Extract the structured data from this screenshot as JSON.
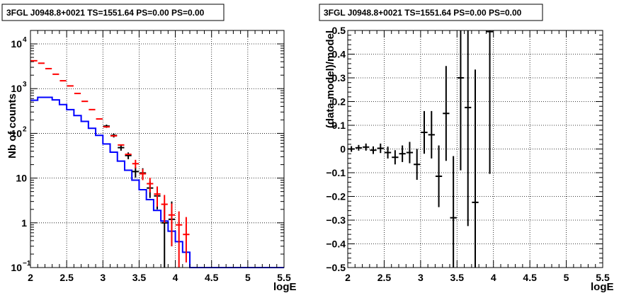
{
  "chart_data": [
    {
      "type": "step",
      "title": "3FGL J0948.8+0021 TS=1551.64 PS=0.00 PS=0.00",
      "xlabel": "logE",
      "ylabel": "Nb of counts",
      "xlim": [
        2,
        5.5
      ],
      "ylim": [
        0.1,
        20000
      ],
      "yscale": "log",
      "grid": true,
      "x_ticks": [
        "2",
        "2.5",
        "3",
        "3.5",
        "4",
        "4.5",
        "5",
        "5.5"
      ],
      "y_ticks": [
        {
          "value": 0.1,
          "label": "10",
          "sup": "−1"
        },
        {
          "value": 1,
          "label": "1",
          "sup": ""
        },
        {
          "value": 10,
          "label": "10",
          "sup": ""
        },
        {
          "value": 100,
          "label": "10",
          "sup": "2"
        },
        {
          "value": 1000,
          "label": "10",
          "sup": "3"
        },
        {
          "value": 10000,
          "label": "10",
          "sup": "4"
        }
      ],
      "bin_width": 0.1,
      "series": [
        {
          "role": "model",
          "color": "#0000ff",
          "style": "step",
          "x": [
            2.0,
            2.1,
            2.2,
            2.3,
            2.4,
            2.5,
            2.6,
            2.7,
            2.8,
            2.9,
            3.0,
            3.1,
            3.2,
            3.3,
            3.4,
            3.5,
            3.6,
            3.7,
            3.8,
            3.9,
            4.0,
            4.1,
            4.2,
            4.3,
            4.4,
            4.5,
            4.6,
            4.7,
            4.8,
            4.9,
            5.0,
            5.1,
            5.2,
            5.3,
            5.4
          ],
          "y": [
            550,
            640,
            640,
            560,
            440,
            340,
            250,
            185,
            130,
            90,
            58,
            38,
            24,
            15,
            9,
            5.5,
            3.3,
            1.9,
            1.1,
            0.65,
            0.38,
            0.22,
            0.1,
            0.1,
            0.1,
            0.1,
            0.1,
            0.1,
            0.1,
            0.1,
            0.1,
            0.1,
            0.1,
            0.1,
            0.1
          ]
        },
        {
          "role": "predicted",
          "color": "#ff0000",
          "style": "errorbar",
          "x": [
            2.05,
            2.15,
            2.25,
            2.35,
            2.45,
            2.55,
            2.65,
            2.75,
            2.85,
            2.95,
            3.05,
            3.15,
            3.25,
            3.35,
            3.45,
            3.55,
            3.65,
            3.75,
            3.85,
            3.95,
            4.05,
            4.15
          ],
          "y": [
            4200,
            3700,
            2800,
            2100,
            1500,
            1150,
            780,
            520,
            340,
            210,
            140,
            88,
            55,
            34,
            21,
            12.5,
            7.5,
            4.4,
            2.6,
            1.5,
            0.9,
            0.55
          ],
          "yerr_low": [
            0,
            0,
            0,
            0,
            0,
            0,
            0,
            0,
            0,
            0,
            0,
            0,
            0,
            0,
            4.5,
            3.5,
            2.7,
            2.1,
            1.6,
            1.2,
            0.9,
            0.42
          ],
          "yerr_high": [
            0,
            0,
            0,
            0,
            0,
            0,
            0,
            0,
            0,
            0,
            0,
            0,
            0,
            0,
            4.6,
            3.5,
            2.7,
            2.1,
            1.6,
            1.2,
            0.9,
            0.8
          ]
        },
        {
          "role": "data",
          "color": "#000000",
          "style": "errorbar",
          "x": [
            3.05,
            3.15,
            3.25,
            3.35,
            3.45,
            3.55,
            3.65,
            3.75,
            3.85,
            3.95
          ],
          "y": [
            145,
            90,
            48,
            32,
            14,
            13,
            6,
            4,
            1,
            1.2
          ],
          "yerr_low": [
            12,
            9,
            7,
            5.5,
            3.7,
            3.6,
            2.4,
            2,
            0.9,
            0.9
          ],
          "yerr_high": [
            12,
            9,
            7,
            5.5,
            3.7,
            3.6,
            2.4,
            2,
            1.6,
            1.8
          ]
        }
      ]
    },
    {
      "type": "scatter",
      "title": "3FGL J0948.8+0021 TS=1551.64 PS=0.00 PS=0.00",
      "xlabel": "logE",
      "ylabel": "(data-model)/model",
      "xlim": [
        2,
        5.5
      ],
      "ylim": [
        -0.5,
        0.5
      ],
      "grid": true,
      "x_ticks": [
        "2",
        "2.5",
        "3",
        "3.5",
        "4",
        "4.5",
        "5",
        "5.5"
      ],
      "y_ticks": [
        "0.5",
        "0.4",
        "0.3",
        "0.2",
        "0.1",
        "0",
        "−0.1",
        "−0.2",
        "−0.3",
        "−0.4",
        "−0.5"
      ],
      "series": [
        {
          "role": "residual",
          "color": "#000000",
          "style": "errorbar",
          "x": [
            2.05,
            2.15,
            2.25,
            2.35,
            2.45,
            2.55,
            2.65,
            2.75,
            2.85,
            2.95,
            3.05,
            3.15,
            3.25,
            3.35,
            3.45,
            3.55,
            3.65,
            3.75,
            3.95
          ],
          "y": [
            0.0,
            0.005,
            0.008,
            -0.005,
            0.003,
            -0.015,
            -0.035,
            -0.02,
            -0.015,
            -0.065,
            0.07,
            0.06,
            -0.115,
            0.15,
            -0.29,
            0.3,
            0.175,
            -0.225,
            0.495
          ],
          "yerr": [
            0.012,
            0.012,
            0.015,
            0.016,
            0.02,
            0.025,
            0.03,
            0.035,
            0.045,
            0.065,
            0.09,
            0.1,
            0.13,
            0.2,
            0.26,
            0.39,
            0.5,
            0.56,
            0.6
          ]
        }
      ]
    }
  ]
}
